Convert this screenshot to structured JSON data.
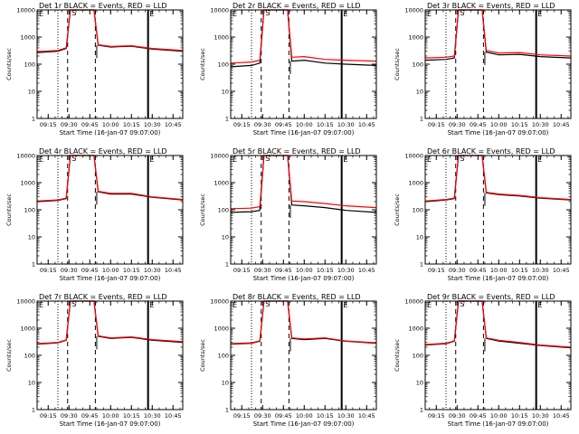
{
  "figure": {
    "x_label": "Start Time (16-Jan-07 09:07:00)",
    "y_label": "Counts/sec",
    "x_tick_labels": [
      "09:15",
      "09:30",
      "09:45",
      "10:00",
      "10:15",
      "10:30",
      "10:45"
    ],
    "y_tick_labels": [
      "1",
      "10",
      "100",
      "1000",
      "10000"
    ],
    "markers": {
      "left": "E",
      "center": "S",
      "right": "E"
    },
    "colors": {
      "events": "#000000",
      "lld": "#ff0000",
      "background": "#ffffff"
    }
  },
  "chart_data": [
    {
      "type": "line",
      "title": "Det 1r BLACK = Events, RED = LLD",
      "x": [
        "09:07",
        "09:22",
        "09:28",
        "09:31",
        "09:48",
        "09:51",
        "10:00",
        "10:15",
        "10:30",
        "10:52"
      ],
      "ylim": [
        1,
        10000
      ],
      "yscale": "log",
      "series": [
        {
          "name": "Events",
          "color": "#000000",
          "values": [
            270,
            300,
            380,
            10000,
            10000,
            500,
            430,
            460,
            360,
            300
          ]
        },
        {
          "name": "LLD",
          "color": "#ff0000",
          "values": [
            290,
            320,
            400,
            10000,
            10000,
            520,
            450,
            480,
            380,
            320
          ]
        }
      ]
    },
    {
      "type": "line",
      "title": "Det 2r BLACK = Events, RED = LLD",
      "x": [
        "09:07",
        "09:22",
        "09:28",
        "09:31",
        "09:48",
        "09:51",
        "10:00",
        "10:15",
        "10:30",
        "10:52"
      ],
      "ylim": [
        1,
        10000
      ],
      "yscale": "log",
      "series": [
        {
          "name": "Events",
          "color": "#000000",
          "values": [
            80,
            90,
            110,
            10000,
            10000,
            130,
            140,
            110,
            100,
            90
          ]
        },
        {
          "name": "LLD",
          "color": "#ff0000",
          "values": [
            110,
            120,
            140,
            10000,
            10000,
            180,
            190,
            150,
            140,
            130
          ]
        }
      ]
    },
    {
      "type": "line",
      "title": "Det 3r BLACK = Events, RED = LLD",
      "x": [
        "09:07",
        "09:22",
        "09:28",
        "09:31",
        "09:48",
        "09:51",
        "10:00",
        "10:15",
        "10:30",
        "10:52"
      ],
      "ylim": [
        1,
        10000
      ],
      "yscale": "log",
      "series": [
        {
          "name": "Events",
          "color": "#000000",
          "values": [
            140,
            150,
            170,
            10000,
            10000,
            280,
            220,
            230,
            190,
            170
          ]
        },
        {
          "name": "LLD",
          "color": "#ff0000",
          "values": [
            170,
            180,
            200,
            10000,
            10000,
            320,
            260,
            270,
            220,
            200
          ]
        }
      ]
    },
    {
      "type": "line",
      "title": "Det 4r BLACK = Events, RED = LLD",
      "x": [
        "09:07",
        "09:22",
        "09:28",
        "09:31",
        "09:48",
        "09:51",
        "10:00",
        "10:15",
        "10:30",
        "10:52"
      ],
      "ylim": [
        1,
        10000
      ],
      "yscale": "log",
      "series": [
        {
          "name": "Events",
          "color": "#000000",
          "values": [
            200,
            220,
            260,
            10000,
            10000,
            460,
            380,
            380,
            290,
            230
          ]
        },
        {
          "name": "LLD",
          "color": "#ff0000",
          "values": [
            210,
            230,
            270,
            10000,
            10000,
            480,
            400,
            400,
            300,
            240
          ]
        }
      ]
    },
    {
      "type": "line",
      "title": "Det 5r BLACK = Events, RED = LLD",
      "x": [
        "09:07",
        "09:22",
        "09:28",
        "09:31",
        "09:48",
        "09:51",
        "10:00",
        "10:15",
        "10:30",
        "10:52"
      ],
      "ylim": [
        1,
        10000
      ],
      "yscale": "log",
      "series": [
        {
          "name": "Events",
          "color": "#000000",
          "values": [
            80,
            85,
            95,
            10000,
            10000,
            150,
            140,
            120,
            95,
            80
          ]
        },
        {
          "name": "LLD",
          "color": "#ff0000",
          "values": [
            110,
            115,
            130,
            10000,
            10000,
            210,
            200,
            170,
            140,
            120
          ]
        }
      ]
    },
    {
      "type": "line",
      "title": "Det 6r BLACK = Events, RED = LLD",
      "x": [
        "09:07",
        "09:22",
        "09:28",
        "09:31",
        "09:48",
        "09:51",
        "10:00",
        "10:15",
        "10:30",
        "10:52"
      ],
      "ylim": [
        1,
        10000
      ],
      "yscale": "log",
      "series": [
        {
          "name": "Events",
          "color": "#000000",
          "values": [
            200,
            230,
            260,
            10000,
            10000,
            420,
            360,
            320,
            270,
            230
          ]
        },
        {
          "name": "LLD",
          "color": "#ff0000",
          "values": [
            210,
            240,
            270,
            10000,
            10000,
            440,
            380,
            340,
            280,
            240
          ]
        }
      ]
    },
    {
      "type": "line",
      "title": "Det 7r BLACK = Events, RED = LLD",
      "x": [
        "09:07",
        "09:22",
        "09:28",
        "09:31",
        "09:48",
        "09:51",
        "10:00",
        "10:15",
        "10:30",
        "10:52"
      ],
      "ylim": [
        1,
        10000
      ],
      "yscale": "log",
      "series": [
        {
          "name": "Events",
          "color": "#000000",
          "values": [
            260,
            290,
            360,
            10000,
            10000,
            500,
            420,
            460,
            360,
            300
          ]
        },
        {
          "name": "LLD",
          "color": "#ff0000",
          "values": [
            270,
            300,
            370,
            10000,
            10000,
            520,
            440,
            480,
            380,
            320
          ]
        }
      ]
    },
    {
      "type": "line",
      "title": "Det 8r BLACK = Events, RED = LLD",
      "x": [
        "09:07",
        "09:22",
        "09:28",
        "09:31",
        "09:48",
        "09:51",
        "10:00",
        "10:15",
        "10:30",
        "10:52"
      ],
      "ylim": [
        1,
        10000
      ],
      "yscale": "log",
      "series": [
        {
          "name": "Events",
          "color": "#000000",
          "values": [
            260,
            280,
            330,
            10000,
            10000,
            420,
            380,
            420,
            330,
            280
          ]
        },
        {
          "name": "LLD",
          "color": "#ff0000",
          "values": [
            270,
            290,
            340,
            10000,
            10000,
            440,
            400,
            440,
            340,
            290
          ]
        }
      ]
    },
    {
      "type": "line",
      "title": "Det 9r BLACK = Events, RED = LLD",
      "x": [
        "09:07",
        "09:22",
        "09:28",
        "09:31",
        "09:48",
        "09:51",
        "10:00",
        "10:15",
        "10:30",
        "10:52"
      ],
      "ylim": [
        1,
        10000
      ],
      "yscale": "log",
      "series": [
        {
          "name": "Events",
          "color": "#000000",
          "values": [
            240,
            270,
            330,
            10000,
            10000,
            420,
            340,
            280,
            230,
            190
          ]
        },
        {
          "name": "LLD",
          "color": "#ff0000",
          "values": [
            250,
            280,
            340,
            10000,
            10000,
            440,
            360,
            300,
            240,
            200
          ]
        }
      ]
    }
  ]
}
